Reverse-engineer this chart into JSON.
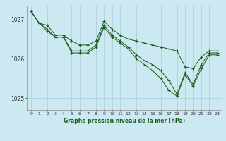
{
  "title": "Graphe pression niveau de la mer (hPa)",
  "bg_color": "#cce8f0",
  "grid_color": "#aaccd8",
  "line_color": "#1a5c1a",
  "xlim": [
    -0.5,
    23.5
  ],
  "ylim": [
    1024.7,
    1027.35
  ],
  "yticks": [
    1025,
    1026,
    1027
  ],
  "xticks": [
    0,
    1,
    2,
    3,
    4,
    5,
    6,
    7,
    8,
    9,
    10,
    11,
    12,
    13,
    14,
    15,
    16,
    17,
    18,
    19,
    20,
    21,
    22,
    23
  ],
  "series": [
    [
      1027.2,
      1026.9,
      1026.85,
      1026.6,
      1026.6,
      1026.45,
      1026.35,
      1026.35,
      1026.45,
      1026.95,
      1026.75,
      1026.6,
      1026.5,
      1026.45,
      1026.4,
      1026.35,
      1026.3,
      1026.25,
      1026.2,
      1025.8,
      1025.75,
      1026.05,
      1026.2,
      1026.2
    ],
    [
      1027.2,
      1026.9,
      1026.75,
      1026.55,
      1026.55,
      1026.2,
      1026.2,
      1026.2,
      1026.35,
      1026.85,
      1026.6,
      1026.45,
      1026.3,
      1026.1,
      1025.95,
      1025.85,
      1025.7,
      1025.45,
      1025.1,
      1025.65,
      1025.35,
      1025.85,
      1026.15,
      1026.15
    ],
    [
      1027.2,
      1026.9,
      1026.7,
      1026.55,
      1026.55,
      1026.15,
      1026.15,
      1026.15,
      1026.3,
      1026.8,
      1026.55,
      1026.4,
      1026.25,
      1026.0,
      1025.85,
      1025.7,
      1025.5,
      1025.2,
      1025.05,
      1025.6,
      1025.3,
      1025.75,
      1026.1,
      1026.1
    ]
  ]
}
